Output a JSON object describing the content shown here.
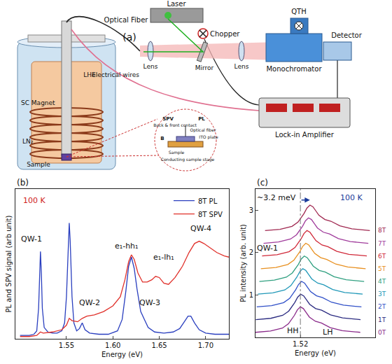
{
  "diagram": {
    "label": "(a)",
    "laser": "Laser",
    "chopper": "Chopper",
    "qth": "QTH",
    "optical_fiber": "Optical Fiber",
    "lenses": [
      "Lens",
      "Lens"
    ],
    "mirror": "Mirror",
    "monochromator": "Monochromator",
    "detector": "Detector",
    "electrical_wires": "Electrical wires",
    "lock_in": "Lock-in Amplifier",
    "cryostat": {
      "magnet": "SC Magnet",
      "ln2": "LN₂",
      "lhe": "LHe",
      "sample": "Sample"
    },
    "inset": {
      "spv": "SPV",
      "pl": "PL",
      "contact": "Back & front contact",
      "fiber": "Optical fiber",
      "ito": "ITO plate",
      "field": "B",
      "sample": "Sample",
      "stage": "Conducting sample stage"
    }
  },
  "chart_data": [
    {
      "type": "line",
      "label": "(b)",
      "x_label": "Energy (eV)",
      "y_label": "PL and SPV signal (arb unit)",
      "xlim": [
        1.495,
        1.725
      ],
      "xticks": [
        1.55,
        {
          "value": 1.6,
          "label": "1.60"
        },
        1.65,
        {
          "value": 1.7,
          "label": "1.70"
        }
      ],
      "ylim": [
        -0.02,
        1.3
      ],
      "yticks": [],
      "tick_labels": "x",
      "grid": false,
      "legend": "upper right",
      "series": [
        {
          "name": "8T PL",
          "color": "#2a3fbf",
          "x": [
            1.5,
            1.51,
            1.515,
            1.518,
            1.52,
            1.521,
            1.522,
            1.523,
            1.524,
            1.526,
            1.53,
            1.535,
            1.54,
            1.545,
            1.548,
            1.55,
            1.552,
            1.553,
            1.554,
            1.556,
            1.558,
            1.561,
            1.564,
            1.567,
            1.57,
            1.575,
            1.585,
            1.595,
            1.605,
            1.61,
            1.614,
            1.617,
            1.62,
            1.623,
            1.626,
            1.63,
            1.634,
            1.638,
            1.645,
            1.655,
            1.665,
            1.672,
            1.677,
            1.681,
            1.684,
            1.688,
            1.693,
            1.7,
            1.71,
            1.725
          ],
          "values": [
            0.01,
            0.01,
            0.02,
            0.05,
            0.25,
            0.55,
            0.75,
            0.55,
            0.25,
            0.08,
            0.04,
            0.03,
            0.03,
            0.05,
            0.12,
            0.35,
            0.85,
            1.0,
            0.85,
            0.35,
            0.12,
            0.05,
            0.07,
            0.12,
            0.06,
            0.03,
            0.02,
            0.02,
            0.05,
            0.15,
            0.4,
            0.62,
            0.7,
            0.6,
            0.42,
            0.22,
            0.15,
            0.08,
            0.04,
            0.03,
            0.04,
            0.07,
            0.13,
            0.18,
            0.18,
            0.12,
            0.06,
            0.03,
            0.02,
            0.02
          ]
        },
        {
          "name": "8T SPV",
          "color": "#e0302a",
          "x": [
            1.5,
            1.51,
            1.518,
            1.522,
            1.525,
            1.535,
            1.545,
            1.55,
            1.553,
            1.556,
            1.562,
            1.567,
            1.572,
            1.58,
            1.59,
            1.6,
            1.608,
            1.613,
            1.617,
            1.62,
            1.623,
            1.627,
            1.632,
            1.637,
            1.642,
            1.646,
            1.65,
            1.655,
            1.66,
            1.667,
            1.675,
            1.682,
            1.688,
            1.693,
            1.698,
            1.705,
            1.712,
            1.72,
            1.725
          ],
          "values": [
            0.0,
            0.0,
            0.01,
            0.04,
            0.03,
            0.04,
            0.06,
            0.1,
            0.16,
            0.14,
            0.13,
            0.16,
            0.18,
            0.19,
            0.22,
            0.27,
            0.35,
            0.5,
            0.66,
            0.72,
            0.68,
            0.56,
            0.48,
            0.48,
            0.5,
            0.53,
            0.52,
            0.47,
            0.46,
            0.52,
            0.62,
            0.74,
            0.82,
            0.84,
            0.82,
            0.78,
            0.74,
            0.71,
            0.7
          ]
        }
      ],
      "annotations": [
        {
          "text": "100 K",
          "x": 1.515,
          "y": 1.2,
          "color": "#d02020"
        },
        {
          "text": "QW-1",
          "x": 1.512,
          "y": 0.86
        },
        {
          "text": "QW-2",
          "x": 1.575,
          "y": 0.3
        },
        {
          "text": "QW-3",
          "x": 1.64,
          "y": 0.3
        },
        {
          "text": "QW-4",
          "x": 1.695,
          "y": 0.95
        },
        {
          "text": "e₁-hh₁",
          "x": 1.615,
          "y": 0.8
        },
        {
          "text": "e₁-lh₁",
          "x": 1.655,
          "y": 0.7
        }
      ]
    },
    {
      "type": "line",
      "label": "(c)",
      "x_label": "Energy (eV)",
      "y_label": "PL intensity (arb. unit)",
      "xlim": [
        1.505,
        1.545
      ],
      "xticks": [
        1.52
      ],
      "ylim": [
        0,
        3.5
      ],
      "yticks": [
        1,
        2,
        3
      ],
      "grid": false,
      "series": [
        {
          "name": "0T",
          "color": "#8a2a8a",
          "x": [
            1.505,
            1.51,
            1.514,
            1.516,
            1.518,
            1.519,
            1.52,
            1.521,
            1.522,
            1.523,
            1.525,
            1.527,
            1.53,
            1.534,
            1.54
          ],
          "values": [
            0.12,
            0.15,
            0.22,
            0.32,
            0.52,
            0.65,
            0.72,
            0.68,
            0.58,
            0.48,
            0.38,
            0.34,
            0.23,
            0.16,
            0.12
          ]
        },
        {
          "name": "1T",
          "color": "#2a2a80",
          "x": [
            1.5051,
            1.5101,
            1.5141,
            1.5161,
            1.5181,
            1.5191,
            1.5201,
            1.5211,
            1.5221,
            1.5231,
            1.5251,
            1.5271,
            1.5301,
            1.5341,
            1.5401
          ],
          "values": [
            0.42,
            0.45,
            0.52,
            0.62,
            0.82,
            0.95,
            1.02,
            0.98,
            0.88,
            0.78,
            0.68,
            0.64,
            0.53,
            0.46,
            0.42
          ]
        },
        {
          "name": "2T",
          "color": "#3050c8",
          "x": [
            1.5054,
            1.5104,
            1.5144,
            1.5164,
            1.5184,
            1.5194,
            1.5204,
            1.5214,
            1.5224,
            1.5234,
            1.5254,
            1.5274,
            1.5304,
            1.5344,
            1.5404
          ],
          "values": [
            0.72,
            0.75,
            0.82,
            0.92,
            1.12,
            1.25,
            1.32,
            1.28,
            1.18,
            1.08,
            0.98,
            0.94,
            0.83,
            0.76,
            0.72
          ]
        },
        {
          "name": "3T",
          "color": "#2098b8",
          "x": [
            1.5058,
            1.5108,
            1.5148,
            1.5168,
            1.5188,
            1.5198,
            1.5208,
            1.5218,
            1.5228,
            1.5238,
            1.5258,
            1.5278,
            1.5308,
            1.5348,
            1.5408
          ],
          "values": [
            1.02,
            1.05,
            1.12,
            1.22,
            1.42,
            1.55,
            1.62,
            1.58,
            1.48,
            1.38,
            1.28,
            1.24,
            1.13,
            1.06,
            1.02
          ]
        },
        {
          "name": "4T",
          "color": "#30a080",
          "x": [
            1.5063,
            1.5113,
            1.5153,
            1.5173,
            1.5193,
            1.5203,
            1.5213,
            1.5223,
            1.5233,
            1.5243,
            1.5263,
            1.5283,
            1.5313,
            1.5353,
            1.5413
          ],
          "values": [
            1.32,
            1.35,
            1.42,
            1.52,
            1.72,
            1.85,
            1.92,
            1.88,
            1.78,
            1.68,
            1.58,
            1.54,
            1.43,
            1.36,
            1.32
          ]
        },
        {
          "name": "5T",
          "color": "#e89020",
          "x": [
            1.5068,
            1.5118,
            1.5158,
            1.5178,
            1.5198,
            1.5208,
            1.5218,
            1.5228,
            1.5238,
            1.5248,
            1.5268,
            1.5288,
            1.5318,
            1.5358,
            1.5418
          ],
          "values": [
            1.62,
            1.65,
            1.72,
            1.82,
            2.02,
            2.15,
            2.22,
            2.18,
            2.08,
            1.98,
            1.88,
            1.84,
            1.73,
            1.66,
            1.62
          ]
        },
        {
          "name": "6T",
          "color": "#d02838",
          "x": [
            1.5072,
            1.5122,
            1.5162,
            1.5182,
            1.5202,
            1.5212,
            1.5222,
            1.5232,
            1.5242,
            1.5252,
            1.5272,
            1.5292,
            1.5322,
            1.5362,
            1.5422
          ],
          "values": [
            1.92,
            1.95,
            2.02,
            2.12,
            2.32,
            2.45,
            2.52,
            2.48,
            2.38,
            2.28,
            2.18,
            2.14,
            2.03,
            1.96,
            1.92
          ]
        },
        {
          "name": "7T",
          "color": "#a03c9c",
          "x": [
            1.5077,
            1.5127,
            1.5167,
            1.5187,
            1.5207,
            1.5217,
            1.5227,
            1.5237,
            1.5247,
            1.5257,
            1.5277,
            1.5297,
            1.5327,
            1.5367,
            1.5427
          ],
          "values": [
            2.22,
            2.25,
            2.32,
            2.42,
            2.62,
            2.75,
            2.82,
            2.78,
            2.68,
            2.58,
            2.48,
            2.44,
            2.33,
            2.26,
            2.22
          ]
        },
        {
          "name": "8T",
          "color": "#a02850",
          "x": [
            1.5082,
            1.5132,
            1.5172,
            1.5192,
            1.5212,
            1.5222,
            1.5232,
            1.5242,
            1.5252,
            1.5262,
            1.5282,
            1.5302,
            1.5332,
            1.5372,
            1.5432
          ],
          "values": [
            2.52,
            2.55,
            2.62,
            2.72,
            2.92,
            3.05,
            3.12,
            3.08,
            2.98,
            2.88,
            2.78,
            2.74,
            2.63,
            2.56,
            2.52
          ]
        }
      ],
      "annotations": [
        {
          "text": "~3.2 meV",
          "x": 1.512,
          "y": 3.3
        },
        {
          "text": "100 K",
          "x": 1.537,
          "y": 3.3,
          "color": "#1a3a9a"
        },
        {
          "text": "QW-1",
          "x": 1.509,
          "y": 2.1
        },
        {
          "text": "HH",
          "x": 1.5175,
          "y": 0.15
        },
        {
          "text": "LH",
          "x": 1.529,
          "y": 0.12
        }
      ]
    }
  ]
}
